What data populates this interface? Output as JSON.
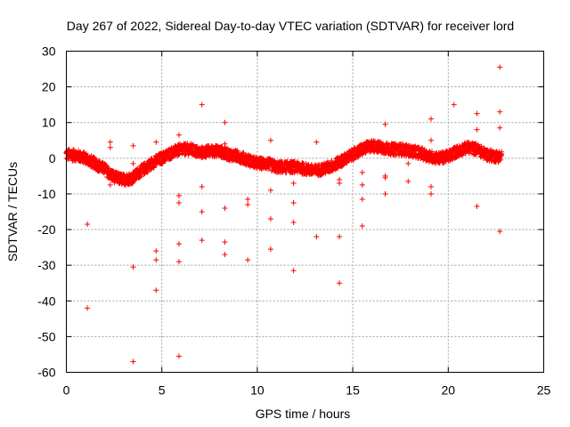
{
  "chart_data": {
    "type": "scatter",
    "title": "Day 267 of 2022, Sidereal Day-to-day VTEC variation (SDTVAR) for receiver lord",
    "xlabel": "GPS time / hours",
    "ylabel": "SDTVAR / TECUs",
    "xlim": [
      0,
      25
    ],
    "ylim": [
      -60,
      30
    ],
    "xticks": [
      0,
      5,
      10,
      15,
      20,
      25
    ],
    "yticks": [
      -60,
      -50,
      -40,
      -30,
      -20,
      -10,
      0,
      10,
      20,
      30
    ],
    "grid": true,
    "marker": "+",
    "series_color": "#ff0000",
    "trend": [
      [
        0.0,
        1.0
      ],
      [
        0.5,
        0.8
      ],
      [
        1.0,
        0.0
      ],
      [
        1.5,
        -1.5
      ],
      [
        2.0,
        -3.0
      ],
      [
        2.3,
        -4.5
      ],
      [
        2.6,
        -5.5
      ],
      [
        3.0,
        -6.0
      ],
      [
        3.5,
        -5.5
      ],
      [
        3.8,
        -4.0
      ],
      [
        4.2,
        -2.5
      ],
      [
        4.6,
        -1.0
      ],
      [
        5.0,
        0.0
      ],
      [
        5.5,
        1.5
      ],
      [
        6.0,
        2.5
      ],
      [
        6.5,
        2.5
      ],
      [
        7.0,
        1.5
      ],
      [
        7.5,
        2.0
      ],
      [
        8.0,
        2.0
      ],
      [
        8.5,
        1.0
      ],
      [
        9.0,
        0.5
      ],
      [
        9.5,
        -0.5
      ],
      [
        10.0,
        -1.5
      ],
      [
        10.5,
        -1.5
      ],
      [
        11.0,
        -2.5
      ],
      [
        11.5,
        -2.5
      ],
      [
        12.0,
        -2.5
      ],
      [
        12.5,
        -3.0
      ],
      [
        13.0,
        -3.5
      ],
      [
        13.5,
        -3.0
      ],
      [
        14.0,
        -2.0
      ],
      [
        14.5,
        -0.5
      ],
      [
        15.0,
        1.0
      ],
      [
        15.5,
        2.5
      ],
      [
        16.0,
        3.5
      ],
      [
        16.5,
        3.0
      ],
      [
        17.0,
        2.5
      ],
      [
        17.5,
        2.5
      ],
      [
        18.0,
        2.0
      ],
      [
        18.5,
        1.5
      ],
      [
        19.0,
        0.5
      ],
      [
        19.5,
        0.0
      ],
      [
        20.0,
        0.5
      ],
      [
        20.5,
        2.0
      ],
      [
        21.0,
        3.0
      ],
      [
        21.5,
        2.5
      ],
      [
        22.0,
        1.0
      ],
      [
        22.5,
        0.5
      ],
      [
        22.8,
        0.5
      ]
    ],
    "outliers": [
      [
        1.1,
        -42
      ],
      [
        1.1,
        -18.5
      ],
      [
        2.3,
        4.5
      ],
      [
        2.3,
        3
      ],
      [
        2.3,
        -7.5
      ],
      [
        3.5,
        -57
      ],
      [
        3.5,
        -30.5
      ],
      [
        3.5,
        3.5
      ],
      [
        3.5,
        -1.5
      ],
      [
        4.7,
        -26
      ],
      [
        4.7,
        -28.5
      ],
      [
        4.7,
        -37
      ],
      [
        4.7,
        4.5
      ],
      [
        5.9,
        -55.5
      ],
      [
        5.9,
        -29
      ],
      [
        5.9,
        -24
      ],
      [
        5.9,
        -12.5
      ],
      [
        5.9,
        -10.5
      ],
      [
        5.9,
        6.5
      ],
      [
        7.1,
        15
      ],
      [
        7.1,
        -8
      ],
      [
        7.1,
        -15
      ],
      [
        7.1,
        -23
      ],
      [
        8.3,
        10
      ],
      [
        8.3,
        4
      ],
      [
        8.3,
        -14
      ],
      [
        8.3,
        -23.5
      ],
      [
        8.3,
        -27
      ],
      [
        9.5,
        -28.5
      ],
      [
        9.5,
        -13
      ],
      [
        9.5,
        -11.5
      ],
      [
        10.7,
        5
      ],
      [
        10.7,
        -9
      ],
      [
        10.7,
        -17
      ],
      [
        10.7,
        -25.5
      ],
      [
        11.9,
        -31.5
      ],
      [
        11.9,
        -18
      ],
      [
        11.9,
        -12.5
      ],
      [
        11.9,
        -7
      ],
      [
        13.1,
        4.5
      ],
      [
        13.1,
        -22
      ],
      [
        14.3,
        -35
      ],
      [
        14.3,
        -22
      ],
      [
        14.3,
        -7
      ],
      [
        14.3,
        -6
      ],
      [
        15.5,
        -19
      ],
      [
        15.5,
        -11.5
      ],
      [
        15.5,
        -7.5
      ],
      [
        15.5,
        -4
      ],
      [
        16.7,
        9.5
      ],
      [
        16.7,
        -5
      ],
      [
        16.7,
        -5.5
      ],
      [
        16.7,
        -10
      ],
      [
        17.9,
        -6.5
      ],
      [
        17.9,
        -1.5
      ],
      [
        19.1,
        11
      ],
      [
        19.1,
        5
      ],
      [
        19.1,
        -8
      ],
      [
        19.1,
        -10
      ],
      [
        20.3,
        15
      ],
      [
        20.3,
        3
      ],
      [
        21.5,
        12.5
      ],
      [
        21.5,
        8
      ],
      [
        21.5,
        -13.5
      ],
      [
        22.7,
        25.5
      ],
      [
        22.7,
        13
      ],
      [
        22.7,
        8.5
      ],
      [
        22.7,
        -20.5
      ]
    ]
  }
}
